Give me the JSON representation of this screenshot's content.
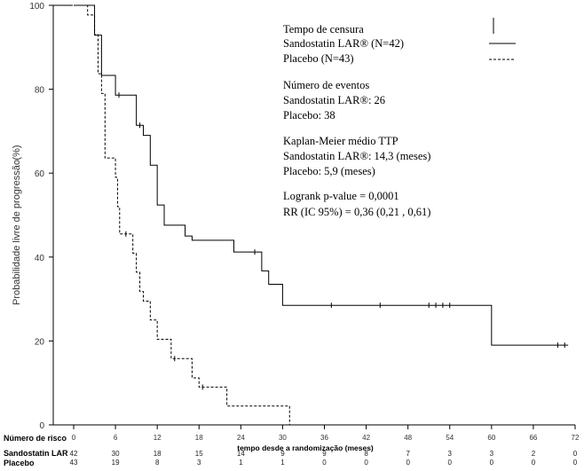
{
  "chart_data": {
    "type": "line",
    "subtype": "kaplan-meier",
    "ylabel": "Probabilidade livre de progressão",
    "ylabel_unit": "(%)",
    "xlabel": "tempo desde a randomização (meses)",
    "xlim": [
      0,
      72
    ],
    "ylim": [
      0,
      100
    ],
    "x_ticks": [
      "0",
      "6",
      "12",
      "18",
      "24",
      "30",
      "36",
      "42",
      "48",
      "54",
      "60",
      "66",
      "72"
    ],
    "y_ticks": [
      "0",
      "20",
      "40",
      "60",
      "80",
      "100"
    ],
    "grid": false,
    "series": [
      {
        "name": "Sandostatin LAR® (N=42)",
        "line_style": "solid",
        "steps": [
          [
            0,
            100
          ],
          [
            2,
            100
          ],
          [
            3,
            92.9
          ],
          [
            4,
            83.3
          ],
          [
            6,
            78.6
          ],
          [
            7,
            78.6
          ],
          [
            9,
            71.4
          ],
          [
            10,
            69
          ],
          [
            11,
            61.9
          ],
          [
            12,
            52.4
          ],
          [
            13,
            47.6
          ],
          [
            16,
            45
          ],
          [
            17,
            44
          ],
          [
            21,
            44
          ],
          [
            23,
            41.2
          ],
          [
            27,
            36.7
          ],
          [
            28,
            33.5
          ],
          [
            30,
            28.5
          ],
          [
            48,
            28.5
          ],
          [
            60,
            28.5
          ],
          [
            60,
            19
          ],
          [
            71,
            19
          ]
        ],
        "censor_x": [
          6.5,
          9.5,
          26,
          37,
          44,
          51,
          52,
          53,
          54,
          69.5,
          70.5
        ]
      },
      {
        "name": "Placebo (N=43)",
        "line_style": "dashed",
        "steps": [
          [
            0,
            100
          ],
          [
            2,
            97.7
          ],
          [
            3,
            93
          ],
          [
            3.5,
            83.7
          ],
          [
            4,
            79
          ],
          [
            4.5,
            63.6
          ],
          [
            6,
            59
          ],
          [
            6.3,
            52
          ],
          [
            6.6,
            45.5
          ],
          [
            8,
            45.5
          ],
          [
            8.5,
            40.9
          ],
          [
            9,
            36.4
          ],
          [
            9.5,
            31.8
          ],
          [
            10,
            29.5
          ],
          [
            11,
            25
          ],
          [
            12,
            20.4
          ],
          [
            14,
            15.8
          ],
          [
            17,
            11.2
          ],
          [
            18,
            9
          ],
          [
            22,
            4.5
          ],
          [
            31,
            4.5
          ],
          [
            31,
            0
          ]
        ],
        "censor_x": [
          7.5,
          14.5,
          18.5
        ]
      }
    ],
    "legend": {
      "position": "top-right",
      "censor_title": "Tempo de censura",
      "series_labels": [
        "Sandostatin LAR® (N=42)",
        "Placebo (N=43)"
      ]
    },
    "annotations": {
      "events_title": "Número de eventos",
      "events_sandostatin": "Sandostatin LAR®: 26",
      "events_placebo": "Placebo: 38",
      "km_title": "Kaplan-Meier médio TTP",
      "km_sandostatin": "Sandostatin LAR®: 14,3 (meses)",
      "km_placebo": "Placebo: 5,9 (meses)",
      "logrank": "Logrank p-value = 0,0001",
      "rr": "RR (IC 95%) = 0,36 (0,21 , 0,61)"
    },
    "risk_table": {
      "title": "Número de risco",
      "rows": [
        {
          "label": "Sandostatin LAR",
          "values": [
            "42",
            "30",
            "18",
            "15",
            "14",
            "9",
            "9",
            "8",
            "7",
            "3",
            "3",
            "2",
            "0"
          ]
        },
        {
          "label": "Placebo",
          "values": [
            "43",
            "19",
            "8",
            "3",
            "1",
            "1",
            "0",
            "0",
            "0",
            "0",
            "0",
            "0",
            "0"
          ]
        }
      ]
    }
  }
}
